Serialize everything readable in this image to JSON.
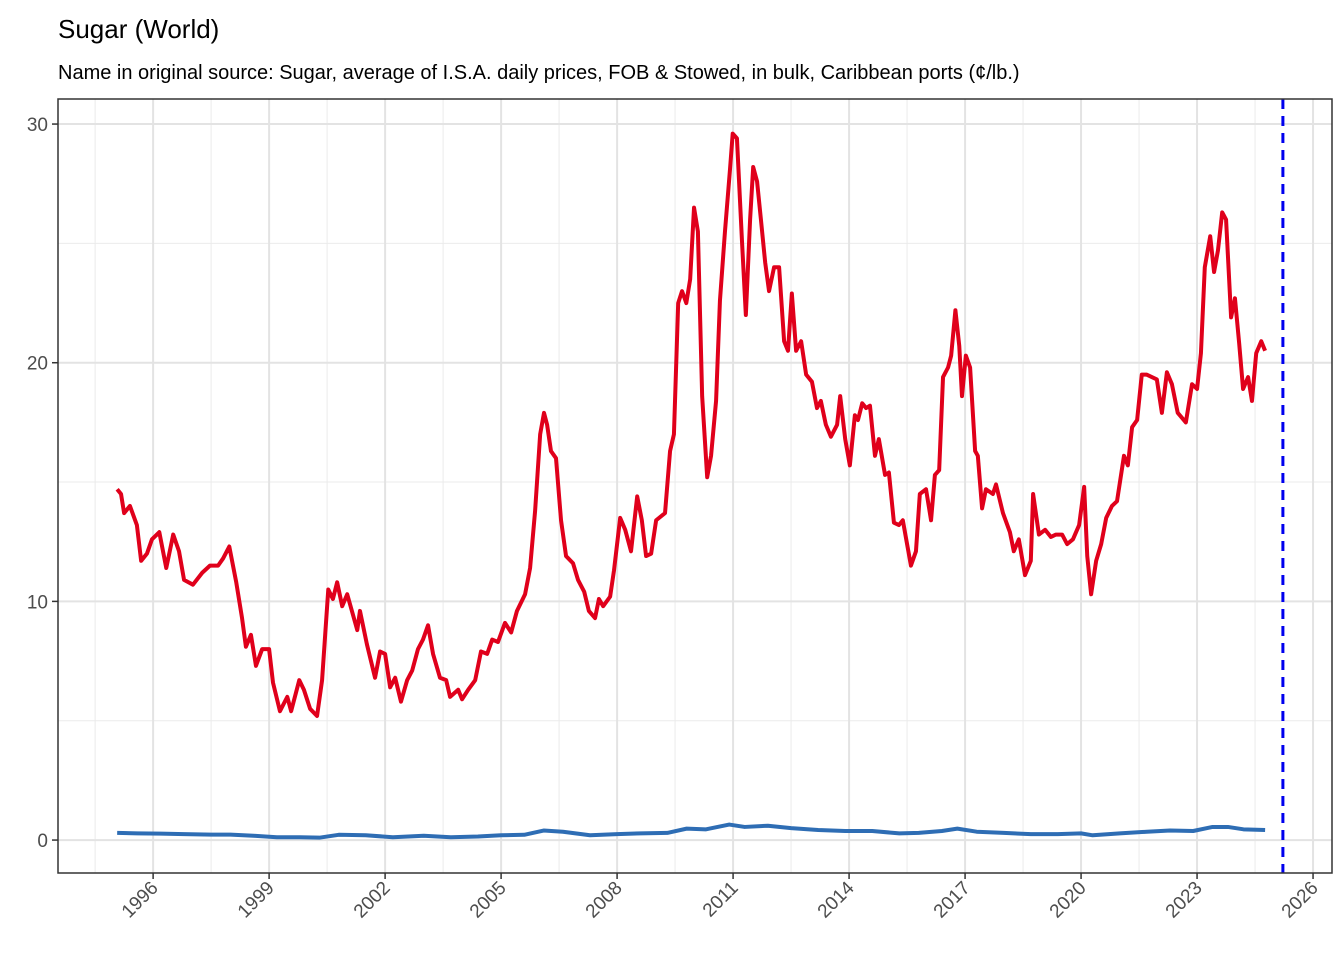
{
  "chart_data": {
    "type": "line",
    "title": "Sugar (World)",
    "subtitle": "Name in original source: Sugar, average of I.S.A. daily prices, FOB & Stowed, in bulk, Caribbean ports (¢/lb.)",
    "xlim": [
      1993.54,
      2026.49
    ],
    "ylim": [
      -1.38,
      31.05
    ],
    "xticks": [
      1996,
      1999,
      2002,
      2005,
      2008,
      2011,
      2014,
      2017,
      2020,
      2023,
      2026
    ],
    "yticks": [
      0,
      10,
      20,
      30
    ],
    "grid": true,
    "vline": {
      "x": 2025.22,
      "color": "#0000ee"
    },
    "series": [
      {
        "color": "#e0001b",
        "x": [
          1995.07,
          1995.17,
          1995.25,
          1995.4,
          1995.58,
          1995.69,
          1995.84,
          1995.97,
          1996.16,
          1996.34,
          1996.52,
          1996.67,
          1996.8,
          1997.03,
          1997.27,
          1997.47,
          1997.68,
          1997.81,
          1997.97,
          1998.15,
          1998.3,
          1998.4,
          1998.53,
          1998.66,
          1998.82,
          1999.0,
          1999.1,
          1999.28,
          1999.47,
          1999.57,
          1999.78,
          1999.9,
          2000.06,
          2000.24,
          2000.37,
          2000.53,
          2000.65,
          2000.76,
          2000.89,
          2001.02,
          2001.28,
          2001.35,
          2001.53,
          2001.74,
          2001.87,
          2002.0,
          2002.13,
          2002.26,
          2002.41,
          2002.57,
          2002.7,
          2002.85,
          2002.98,
          2003.11,
          2003.24,
          2003.42,
          2003.58,
          2003.68,
          2003.89,
          2003.99,
          2004.15,
          2004.33,
          2004.48,
          2004.64,
          2004.77,
          2004.92,
          2005.1,
          2005.26,
          2005.41,
          2005.62,
          2005.75,
          2005.88,
          2006.01,
          2006.11,
          2006.19,
          2006.29,
          2006.42,
          2006.55,
          2006.68,
          2006.86,
          2006.99,
          2007.15,
          2007.27,
          2007.43,
          2007.53,
          2007.64,
          2007.82,
          2007.92,
          2008.08,
          2008.21,
          2008.36,
          2008.52,
          2008.64,
          2008.75,
          2008.88,
          2009.01,
          2009.24,
          2009.37,
          2009.47,
          2009.58,
          2009.68,
          2009.79,
          2009.89,
          2009.99,
          2010.09,
          2010.2,
          2010.33,
          2010.43,
          2010.56,
          2010.66,
          2010.79,
          2010.92,
          2010.99,
          2011.1,
          2011.23,
          2011.33,
          2011.44,
          2011.52,
          2011.62,
          2011.72,
          2011.83,
          2011.93,
          2012.06,
          2012.19,
          2012.32,
          2012.42,
          2012.52,
          2012.63,
          2012.76,
          2012.89,
          2013.04,
          2013.17,
          2013.27,
          2013.4,
          2013.53,
          2013.69,
          2013.77,
          2013.9,
          2014.02,
          2014.15,
          2014.23,
          2014.34,
          2014.44,
          2014.54,
          2014.67,
          2014.77,
          2014.93,
          2015.03,
          2015.16,
          2015.29,
          2015.39,
          2015.5,
          2015.6,
          2015.73,
          2015.83,
          2015.99,
          2016.12,
          2016.22,
          2016.33,
          2016.43,
          2016.56,
          2016.64,
          2016.75,
          2016.85,
          2016.92,
          2017.02,
          2017.13,
          2017.26,
          2017.33,
          2017.44,
          2017.54,
          2017.72,
          2017.8,
          2017.98,
          2018.16,
          2018.26,
          2018.39,
          2018.55,
          2018.7,
          2018.76,
          2018.91,
          2019.07,
          2019.22,
          2019.35,
          2019.51,
          2019.64,
          2019.79,
          2019.95,
          2020.08,
          2020.16,
          2020.26,
          2020.39,
          2020.52,
          2020.65,
          2020.8,
          2020.93,
          2021.11,
          2021.21,
          2021.32,
          2021.45,
          2021.57,
          2021.7,
          2021.83,
          2021.96,
          2022.09,
          2022.22,
          2022.35,
          2022.5,
          2022.71,
          2022.87,
          2023.0,
          2023.1,
          2023.2,
          2023.34,
          2023.44,
          2023.54,
          2023.65,
          2023.75,
          2023.88,
          2023.98,
          2024.09,
          2024.19,
          2024.32,
          2024.42,
          2024.53,
          2024.66,
          2024.76
        ],
        "values": [
          14.7,
          14.5,
          13.7,
          14.0,
          13.2,
          11.7,
          12.0,
          12.6,
          12.9,
          11.4,
          12.8,
          12.1,
          10.9,
          10.7,
          11.2,
          11.5,
          11.5,
          11.8,
          12.3,
          10.8,
          9.3,
          8.1,
          8.6,
          7.3,
          8.0,
          8.0,
          6.6,
          5.4,
          6.0,
          5.4,
          6.7,
          6.3,
          5.5,
          5.2,
          6.7,
          10.5,
          10.1,
          10.8,
          9.8,
          10.3,
          8.8,
          9.6,
          8.2,
          6.8,
          7.9,
          7.8,
          6.4,
          6.8,
          5.8,
          6.7,
          7.1,
          8.0,
          8.4,
          9.0,
          7.8,
          6.8,
          6.7,
          6.0,
          6.3,
          5.9,
          6.3,
          6.7,
          7.9,
          7.8,
          8.4,
          8.3,
          9.1,
          8.7,
          9.6,
          10.3,
          11.4,
          13.8,
          17.0,
          17.9,
          17.4,
          16.3,
          16.0,
          13.4,
          11.9,
          11.6,
          10.9,
          10.4,
          9.6,
          9.3,
          10.1,
          9.8,
          10.2,
          11.3,
          13.5,
          13.0,
          12.1,
          14.4,
          13.4,
          11.9,
          12.0,
          13.4,
          13.7,
          16.3,
          17.0,
          22.5,
          23.0,
          22.5,
          23.5,
          26.5,
          25.5,
          18.6,
          15.2,
          16.1,
          18.4,
          22.6,
          25.5,
          28.1,
          29.6,
          29.4,
          25.1,
          22.0,
          26.0,
          28.2,
          27.6,
          26.0,
          24.2,
          23.0,
          24.0,
          24.0,
          20.9,
          20.5,
          22.9,
          20.5,
          20.9,
          19.5,
          19.2,
          18.1,
          18.4,
          17.4,
          16.9,
          17.4,
          18.6,
          16.8,
          15.7,
          17.8,
          17.6,
          18.3,
          18.1,
          18.2,
          16.1,
          16.8,
          15.3,
          15.4,
          13.3,
          13.2,
          13.4,
          12.4,
          11.5,
          12.1,
          14.5,
          14.7,
          13.4,
          15.3,
          15.5,
          19.4,
          19.8,
          20.3,
          22.2,
          20.7,
          18.6,
          20.3,
          19.8,
          16.3,
          16.1,
          13.9,
          14.7,
          14.5,
          14.9,
          13.7,
          12.9,
          12.1,
          12.6,
          11.1,
          11.7,
          14.5,
          12.8,
          13.0,
          12.7,
          12.8,
          12.8,
          12.4,
          12.6,
          13.2,
          14.8,
          11.9,
          10.3,
          11.7,
          12.4,
          13.5,
          14.0,
          14.2,
          16.1,
          15.7,
          17.3,
          17.6,
          19.5,
          19.5,
          19.4,
          19.3,
          17.9,
          19.6,
          19.1,
          17.9,
          17.5,
          19.1,
          18.9,
          20.4,
          24.0,
          25.3,
          23.8,
          24.7,
          26.3,
          26.0,
          21.9,
          22.7,
          20.8,
          18.9,
          19.4,
          18.4,
          20.4,
          20.9,
          20.5
        ]
      },
      {
        "color": "#2e6db4",
        "x": [
          1995.07,
          1995.6,
          1996.2,
          1996.8,
          1997.5,
          1998.0,
          1998.6,
          1999.2,
          1999.8,
          2000.3,
          2000.8,
          2001.5,
          2002.2,
          2003.0,
          2003.7,
          2004.4,
          2005.0,
          2005.6,
          2006.1,
          2006.6,
          2007.3,
          2008.0,
          2008.6,
          2009.3,
          2009.8,
          2010.3,
          2010.9,
          2011.3,
          2011.9,
          2012.5,
          2013.2,
          2013.9,
          2014.6,
          2015.3,
          2015.8,
          2016.4,
          2016.8,
          2017.3,
          2018.0,
          2018.7,
          2019.4,
          2020.0,
          2020.3,
          2021.0,
          2021.7,
          2022.3,
          2022.9,
          2023.4,
          2023.8,
          2024.2,
          2024.76
        ],
        "values": [
          0.3,
          0.28,
          0.27,
          0.25,
          0.23,
          0.23,
          0.18,
          0.12,
          0.12,
          0.1,
          0.22,
          0.2,
          0.12,
          0.18,
          0.12,
          0.15,
          0.2,
          0.22,
          0.4,
          0.35,
          0.2,
          0.25,
          0.28,
          0.3,
          0.48,
          0.45,
          0.65,
          0.55,
          0.6,
          0.5,
          0.42,
          0.38,
          0.38,
          0.28,
          0.3,
          0.38,
          0.48,
          0.35,
          0.3,
          0.25,
          0.25,
          0.28,
          0.2,
          0.28,
          0.35,
          0.4,
          0.38,
          0.55,
          0.55,
          0.45,
          0.42
        ]
      }
    ]
  }
}
